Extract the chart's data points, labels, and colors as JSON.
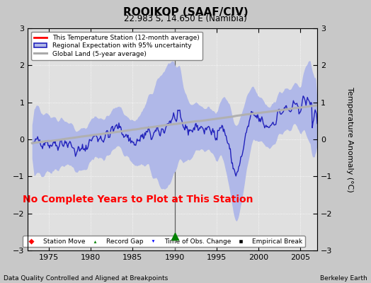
{
  "title": "ROOIKOP (SAAF/CIV)",
  "subtitle": "22.983 S, 14.650 E (Namibia)",
  "xlabel_bottom": "Data Quality Controlled and Aligned at Breakpoints",
  "xlabel_right": "Berkeley Earth",
  "ylabel": "Temperature Anomaly (°C)",
  "xlim": [
    1972.5,
    2007.0
  ],
  "ylim": [
    -3,
    3
  ],
  "yticks": [
    -3,
    -2,
    -1,
    0,
    1,
    2,
    3
  ],
  "xticks": [
    1975,
    1980,
    1985,
    1990,
    1995,
    2000,
    2005
  ],
  "background_color": "#c8c8c8",
  "plot_bg_color": "#e0e0e0",
  "no_data_text": "No Complete Years to Plot at This Station",
  "no_data_color": "red",
  "vline_x": 1990,
  "vline_color": "#606060",
  "record_gap_x": 1990,
  "record_gap_y": -2.62,
  "legend_labels": [
    "This Temperature Station (12-month average)",
    "Regional Expectation with 95% uncertainty",
    "Global Land (5-year average)"
  ],
  "legend_colors": [
    "red",
    "#2222bb",
    "#aaaaaa"
  ],
  "regional_fill_color": "#b0b8e8",
  "regional_line_color": "#2222bb",
  "station_line_color": "red",
  "global_line_color": "#b0b0b0",
  "seed": 42
}
